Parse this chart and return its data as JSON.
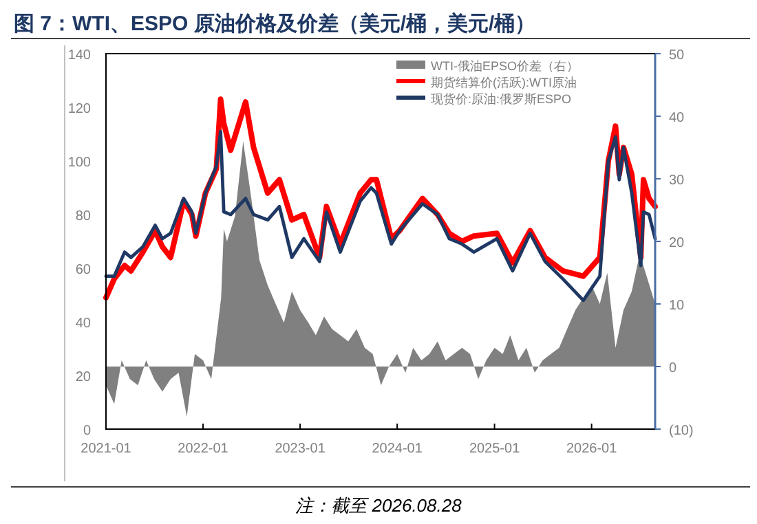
{
  "chart_data": {
    "type": "line",
    "title": "图 7：WTI、ESPO 原油价格及价差（美元/桶，美元/桶）",
    "xlim": [
      "2021-01-01",
      "2026-08-28"
    ],
    "xticks": [
      {
        "value": "2021-01-01",
        "label": "2021-01"
      },
      {
        "value": "2022-01-01",
        "label": "2022-01"
      },
      {
        "value": "2023-01-01",
        "label": "2023-01"
      },
      {
        "value": "2024-01-01",
        "label": "2024-01"
      },
      {
        "value": "2025-01-01",
        "label": "2025-01"
      },
      {
        "value": "2026-01-01",
        "label": "2026-01"
      }
    ],
    "ylim": [
      0,
      140
    ],
    "yticks": [
      0,
      20,
      40,
      60,
      80,
      100,
      120,
      140
    ],
    "y2lim": [
      -10,
      50
    ],
    "y2ticks": [
      {
        "value": -10,
        "label": "(10)"
      },
      0,
      10,
      20,
      30,
      40,
      50
    ],
    "legend": "top right",
    "grid": false,
    "series": [
      {
        "name": "WTI-俄油EPSO价差（右）",
        "type": "area",
        "axis": "y2",
        "color": "#808080",
        "x": [
          "2021-01-01",
          "2021-02-01",
          "2021-03-01",
          "2021-04-01",
          "2021-05-01",
          "2021-06-01",
          "2021-07-01",
          "2021-08-01",
          "2021-09-01",
          "2021-10-01",
          "2021-11-01",
          "2021-12-01",
          "2022-01-01",
          "2022-02-01",
          "2022-03-10",
          "2022-03-20",
          "2022-04-01",
          "2022-05-01",
          "2022-06-01",
          "2022-07-01",
          "2022-08-01",
          "2022-09-01",
          "2022-10-01",
          "2022-11-01",
          "2022-12-01",
          "2023-01-01",
          "2023-02-01",
          "2023-03-01",
          "2023-04-01",
          "2023-05-01",
          "2023-06-01",
          "2023-07-01",
          "2023-08-01",
          "2023-09-01",
          "2023-10-01",
          "2023-11-01",
          "2023-12-01",
          "2024-01-01",
          "2024-02-01",
          "2024-03-01",
          "2024-04-01",
          "2024-05-01",
          "2024-06-01",
          "2024-07-01",
          "2024-08-01",
          "2024-09-01",
          "2024-10-01",
          "2024-11-01",
          "2024-12-01",
          "2025-01-01",
          "2025-02-01",
          "2025-03-01",
          "2025-04-01",
          "2025-05-01",
          "2025-06-01",
          "2025-07-01",
          "2025-08-01",
          "2025-09-01",
          "2025-10-01",
          "2025-11-01",
          "2025-12-01",
          "2026-01-01",
          "2026-02-01",
          "2026-03-01",
          "2026-04-01",
          "2026-05-01",
          "2026-06-01",
          "2026-07-01",
          "2026-08-28"
        ],
        "values": [
          -3,
          -6,
          1,
          -2,
          -3,
          1,
          -2,
          -4,
          -2,
          -1,
          -8,
          2,
          1,
          -2,
          11,
          22,
          20,
          24,
          36,
          27,
          17,
          13,
          10,
          7,
          12,
          9,
          7,
          5,
          8,
          6,
          5,
          4,
          6,
          3,
          2,
          -3,
          0,
          2,
          -1,
          3,
          1,
          2,
          4,
          1,
          2,
          3,
          2,
          -2,
          1,
          3,
          2,
          5,
          1,
          3,
          -1,
          1,
          2,
          3,
          6,
          9,
          11,
          13,
          10,
          15,
          3,
          9,
          12,
          18,
          10
        ]
      },
      {
        "name": "期货结算价(活跃):WTI原油",
        "color": "#ff0000",
        "x": [
          "2021-01-01",
          "2021-02-01",
          "2021-03-12",
          "2021-04-05",
          "2021-05-20",
          "2021-07-05",
          "2021-08-01",
          "2021-09-01",
          "2021-10-20",
          "2021-11-20",
          "2021-12-05",
          "2022-01-10",
          "2022-02-20",
          "2022-03-08",
          "2022-03-20",
          "2022-04-15",
          "2022-06-10",
          "2022-07-10",
          "2022-09-01",
          "2022-10-15",
          "2022-12-01",
          "2023-01-15",
          "2023-03-15",
          "2023-04-10",
          "2023-06-01",
          "2023-08-15",
          "2023-09-25",
          "2023-10-15",
          "2023-12-10",
          "2024-01-10",
          "2024-04-05",
          "2024-06-01",
          "2024-07-15",
          "2024-09-01",
          "2024-10-15",
          "2025-01-10",
          "2025-03-10",
          "2025-05-15",
          "2025-07-10",
          "2025-09-15",
          "2025-12-01",
          "2026-02-01",
          "2026-03-05",
          "2026-04-01",
          "2026-04-15",
          "2026-05-01",
          "2026-06-01",
          "2026-07-05",
          "2026-07-15",
          "2026-08-05",
          "2026-08-28"
        ],
        "values": [
          49,
          56,
          61,
          59,
          66,
          74,
          68,
          64,
          85,
          80,
          72,
          88,
          97,
          123,
          114,
          104,
          122,
          105,
          88,
          93,
          78,
          80,
          64,
          83,
          69,
          88,
          93,
          93,
          71,
          74,
          86,
          80,
          73,
          70,
          72,
          73,
          62,
          74,
          64,
          59,
          57,
          64,
          100,
          113,
          95,
          105,
          95,
          64,
          93,
          86,
          83
        ]
      },
      {
        "name": "现货价:原油:俄罗斯ESPO",
        "color": "#1f3864",
        "x": [
          "2021-01-01",
          "2021-02-01",
          "2021-03-12",
          "2021-04-05",
          "2021-05-20",
          "2021-07-05",
          "2021-08-01",
          "2021-09-01",
          "2021-10-20",
          "2021-11-20",
          "2021-12-05",
          "2022-01-10",
          "2022-02-20",
          "2022-03-08",
          "2022-03-20",
          "2022-04-15",
          "2022-06-10",
          "2022-07-10",
          "2022-09-01",
          "2022-10-15",
          "2022-12-01",
          "2023-01-15",
          "2023-03-15",
          "2023-04-10",
          "2023-06-01",
          "2023-08-15",
          "2023-09-25",
          "2023-10-15",
          "2023-12-10",
          "2024-01-10",
          "2024-04-05",
          "2024-06-01",
          "2024-07-15",
          "2024-09-01",
          "2024-10-15",
          "2025-01-10",
          "2025-03-10",
          "2025-05-15",
          "2025-07-10",
          "2025-09-15",
          "2025-12-01",
          "2026-02-01",
          "2026-03-05",
          "2026-04-01",
          "2026-04-15",
          "2026-05-01",
          "2026-06-01",
          "2026-07-05",
          "2026-07-15",
          "2026-08-05",
          "2026-08-28"
        ],
        "values": [
          57,
          57,
          66,
          64,
          68,
          76,
          71,
          73,
          86,
          81,
          73,
          88,
          98,
          111,
          81,
          80,
          86,
          80,
          78,
          83,
          64,
          71,
          62.5,
          81,
          66,
          85,
          90,
          88,
          69,
          74,
          84,
          80,
          71,
          69,
          66,
          71,
          59,
          73,
          62.5,
          56,
          48,
          57,
          100,
          109,
          93,
          105,
          88,
          61,
          81,
          80,
          71
        ]
      }
    ],
    "annotations": [
      "注：截至 2026.08.28"
    ]
  }
}
